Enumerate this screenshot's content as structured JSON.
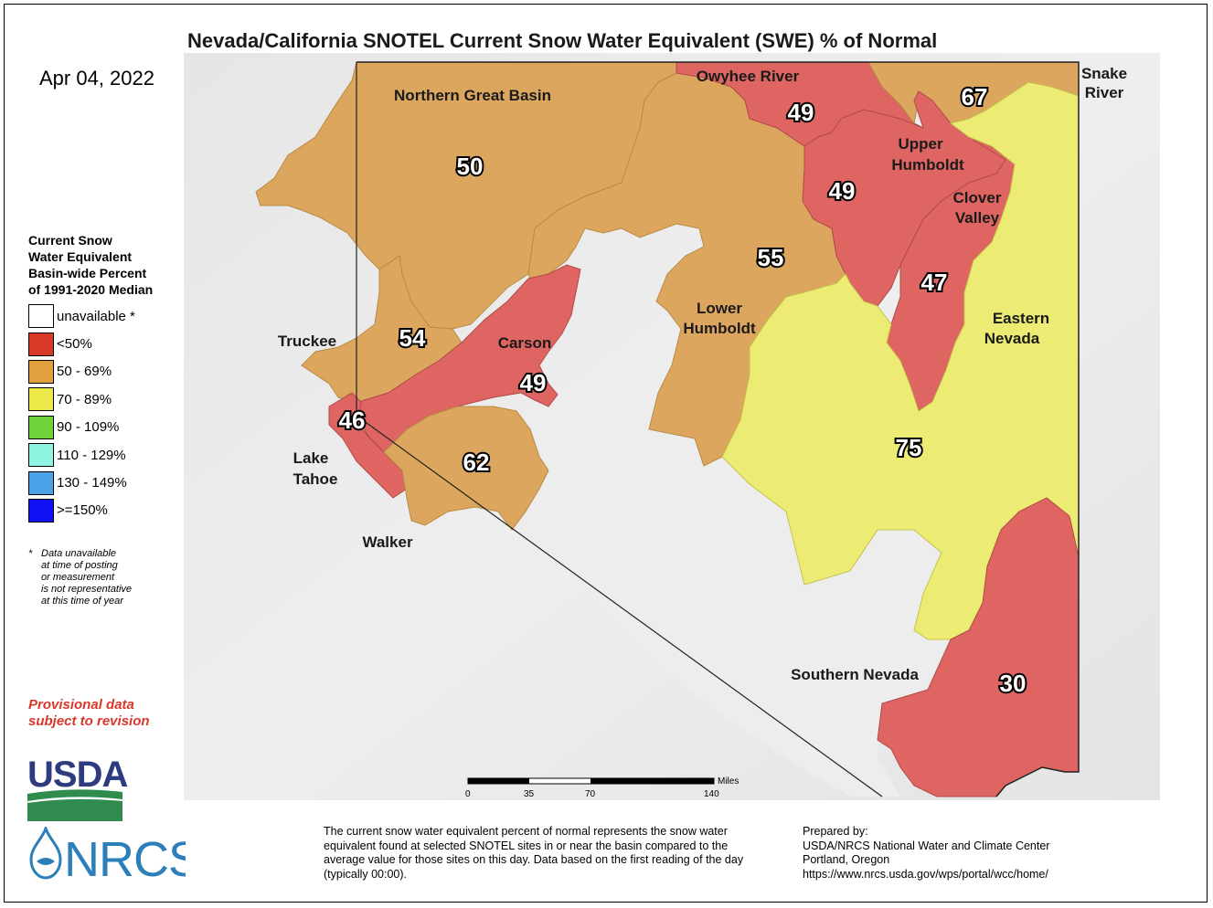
{
  "title": "Nevada/California SNOTEL Current Snow Water Equivalent (SWE) % of Normal",
  "date": "Apr 04, 2022",
  "legend": {
    "title_lines": [
      "Current Snow",
      "Water Equivalent",
      "Basin-wide Percent",
      "of 1991-2020 Median"
    ],
    "items": [
      {
        "label": "unavailable *",
        "color": "#ffffff"
      },
      {
        "label": "<50%",
        "color": "#d93a28"
      },
      {
        "label": "50 - 69%",
        "color": "#e1a13e"
      },
      {
        "label": "70 - 89%",
        "color": "#ede84a"
      },
      {
        "label": "90 - 109%",
        "color": "#6fd43a"
      },
      {
        "label": "110 - 129%",
        "color": "#8ff5e3"
      },
      {
        "label": "130 - 149%",
        "color": "#4aa2e8"
      },
      {
        "label": ">=150%",
        "color": "#1010f5"
      }
    ]
  },
  "footnote": {
    "star": "*",
    "lines": [
      "Data unavailable",
      "at time of posting",
      "or measurement",
      "is not representative",
      "at this time of year"
    ]
  },
  "provisional_lines": [
    "Provisional data",
    "subject to revision"
  ],
  "logos": {
    "usda": "USDA",
    "nrcs": "NRCS"
  },
  "basins": [
    {
      "name": "Northern Great Basin",
      "value": "50",
      "category": "50 - 69%",
      "color": "#dca65e"
    },
    {
      "name": "Owyhee River",
      "value": "49",
      "category": "<50%",
      "color": "#de6562"
    },
    {
      "name": "Snake River",
      "value": "67",
      "category": "50 - 69%",
      "color": "#dca65e"
    },
    {
      "name": "Upper Humboldt",
      "value": "49",
      "category": "<50%",
      "color": "#de6562"
    },
    {
      "name": "Clover Valley",
      "value": "47",
      "category": "<50%",
      "color": "#de6562"
    },
    {
      "name": "Lower Humboldt",
      "value": "55",
      "category": "50 - 69%",
      "color": "#dca65e"
    },
    {
      "name": "Eastern Nevada",
      "value": "75",
      "category": "70 - 89%",
      "color": "#ecec74"
    },
    {
      "name": "Truckee",
      "value": "54",
      "category": "50 - 69%",
      "color": "#dca65e"
    },
    {
      "name": "Carson",
      "value": "49",
      "category": "<50%",
      "color": "#de6562"
    },
    {
      "name": "Lake Tahoe",
      "value": "46",
      "category": "<50%",
      "color": "#de6562"
    },
    {
      "name": "Walker",
      "value": "62",
      "category": "50 - 69%",
      "color": "#dca65e"
    },
    {
      "name": "Southern Nevada",
      "value": "30",
      "category": "<50%",
      "color": "#de6562"
    }
  ],
  "labels": {
    "ngb": "Northern Great Basin",
    "owyhee": "Owyhee River",
    "snake_1": "Snake",
    "snake_2": "River",
    "upper_1": "Upper",
    "upper_2": "Humboldt",
    "clover_1": "Clover",
    "clover_2": "Valley",
    "lower_1": "Lower",
    "lower_2": "Humboldt",
    "eastern_1": "Eastern",
    "eastern_2": "Nevada",
    "truckee": "Truckee",
    "carson": "Carson",
    "tahoe_1": "Lake",
    "tahoe_2": "Tahoe",
    "walker": "Walker",
    "southern": "Southern Nevada"
  },
  "values": {
    "ngb": "50",
    "owyhee": "49",
    "snake": "67",
    "upper": "49",
    "clover": "47",
    "lower": "55",
    "eastern": "75",
    "truckee": "54",
    "carson": "49",
    "tahoe": "46",
    "walker": "62",
    "southern": "30"
  },
  "scale_bar": {
    "unit": "Miles",
    "ticks": [
      "0",
      "35",
      "70",
      "140"
    ]
  },
  "description": "The current snow water equivalent percent of normal represents the snow water equivalent found at selected SNOTEL sites in or near the basin compared to the average value for those sites on this day. Data based on the first reading of the day (typically 00:00).",
  "prepared": {
    "heading": "Prepared by:",
    "org": "USDA/NRCS National Water and Climate Center",
    "location": "Portland, Oregon",
    "url": "https://www.nrcs.usda.gov/wps/portal/wcc/home/"
  }
}
